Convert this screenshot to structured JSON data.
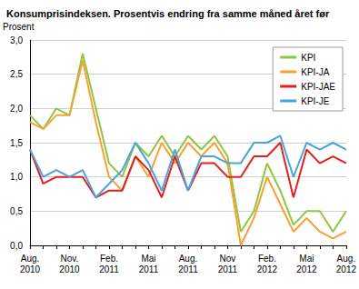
{
  "chart_data": {
    "type": "line",
    "title": "Konsumprisindeksen. Prosentvis endring fra samme måned året før",
    "ylabel": "Prosent",
    "categories": [
      "Aug.\n2010",
      null,
      null,
      "Nov.\n2010",
      null,
      null,
      "Feb.\n2011",
      null,
      null,
      "Mai\n2011",
      null,
      null,
      "Aug.\n2011",
      null,
      null,
      "Nov\n2011",
      null,
      null,
      "Feb.\n2012",
      null,
      null,
      "Mai\n2012",
      null,
      null,
      "Aug.\n2012"
    ],
    "series": [
      {
        "name": "KPI",
        "color": "#8dc63f",
        "values": [
          1.9,
          1.7,
          2.0,
          1.9,
          2.8,
          2.0,
          1.2,
          1.0,
          1.5,
          1.3,
          1.6,
          1.3,
          1.6,
          1.4,
          1.6,
          1.3,
          0.2,
          0.5,
          1.2,
          0.8,
          0.3,
          0.5,
          0.5,
          0.2,
          0.5
        ]
      },
      {
        "name": "KPI-JA",
        "color": "#f7a035",
        "values": [
          1.8,
          1.7,
          1.9,
          1.9,
          2.7,
          1.8,
          1.0,
          0.8,
          1.3,
          1.0,
          1.5,
          1.2,
          1.5,
          1.3,
          1.5,
          1.2,
          0.0,
          0.4,
          1.0,
          0.6,
          0.2,
          0.4,
          0.2,
          0.1,
          0.2
        ]
      },
      {
        "name": "KPI-JAE",
        "color": "#e0201b",
        "values": [
          1.4,
          0.9,
          1.0,
          1.0,
          1.0,
          0.7,
          0.8,
          0.8,
          1.3,
          1.1,
          0.7,
          1.3,
          0.8,
          1.2,
          1.2,
          1.0,
          1.0,
          1.3,
          1.3,
          1.5,
          0.7,
          1.4,
          1.2,
          1.3,
          1.2
        ]
      },
      {
        "name": "KPI-JE",
        "color": "#4aa3df",
        "values": [
          1.4,
          1.0,
          1.1,
          1.0,
          1.1,
          0.7,
          0.9,
          1.1,
          1.5,
          1.2,
          0.8,
          1.4,
          0.8,
          1.3,
          1.3,
          1.2,
          1.2,
          1.5,
          1.5,
          1.6,
          1.0,
          1.5,
          1.4,
          1.5,
          1.4
        ]
      }
    ],
    "ylim": [
      0,
      3
    ],
    "yticks": [
      {
        "value": 0,
        "label": "0,0"
      },
      {
        "value": 0.5,
        "label": "0,5"
      },
      {
        "value": 1,
        "label": "1,0"
      },
      {
        "value": 1.5,
        "label": "1,5"
      },
      {
        "value": 2,
        "label": "2,0"
      },
      {
        "value": 2.5,
        "label": "2,5"
      },
      {
        "value": 3,
        "label": "3,0"
      }
    ],
    "grid": true,
    "legend": "top-right"
  }
}
